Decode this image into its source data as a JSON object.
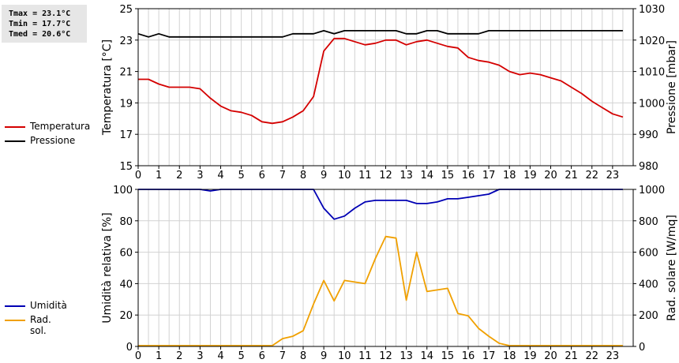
{
  "stats": {
    "tmax": "Tmax = 23.1°C",
    "tmin": "Tmin = 17.7°C",
    "tmed": "Tmed = 20.6°C"
  },
  "colors": {
    "temperature": "#d40000",
    "pressure": "#000000",
    "humidity": "#0000b4",
    "radiation": "#f0a000",
    "grid": "#d2d2d2"
  },
  "chart_data": [
    {
      "type": "line",
      "xlim": [
        0,
        24
      ],
      "x_ticks": [
        "0",
        "1",
        "2",
        "3",
        "4",
        "5",
        "6",
        "7",
        "8",
        "9",
        "10",
        "11",
        "12",
        "13",
        "14",
        "15",
        "16",
        "17",
        "18",
        "19",
        "20",
        "21",
        "22",
        "23"
      ],
      "ylabel": "Temperatura [°C]",
      "y2label": "Pressione [mbar]",
      "ylim": [
        15,
        25
      ],
      "y2lim": [
        980,
        1030
      ],
      "y_ticks": [
        15,
        17,
        19,
        21,
        23,
        25
      ],
      "y2_ticks": [
        980,
        990,
        1000,
        1010,
        1020,
        1030
      ],
      "grid": true,
      "legend_placement": "left",
      "series": [
        {
          "name": "Temperatura",
          "axis": "left",
          "color": "#d40000",
          "x": [
            0,
            0.5,
            1,
            1.5,
            2,
            2.5,
            3,
            3.5,
            4,
            4.5,
            5,
            5.5,
            6,
            6.5,
            7,
            7.5,
            8,
            8.5,
            9,
            9.5,
            10,
            10.5,
            11,
            11.5,
            12,
            12.5,
            13,
            13.5,
            14,
            14.5,
            15,
            15.5,
            16,
            16.5,
            17,
            17.5,
            18,
            18.5,
            19,
            19.5,
            20,
            20.5,
            21,
            21.5,
            22,
            22.5,
            23,
            23.5
          ],
          "values": [
            20.5,
            20.5,
            20.2,
            20.0,
            20.0,
            20.0,
            19.9,
            19.3,
            18.8,
            18.5,
            18.4,
            18.2,
            17.8,
            17.7,
            17.8,
            18.1,
            18.5,
            19.4,
            22.3,
            23.1,
            23.1,
            22.9,
            22.7,
            22.8,
            23.0,
            23.0,
            22.7,
            22.9,
            23.0,
            22.8,
            22.6,
            22.5,
            21.9,
            21.7,
            21.6,
            21.4,
            21.0,
            20.8,
            20.9,
            20.8,
            20.6,
            20.4,
            20.0,
            19.6,
            19.1,
            18.7,
            18.3,
            18.1
          ]
        },
        {
          "name": "Pressione",
          "axis": "right",
          "color": "#000000",
          "x": [
            0,
            0.5,
            1,
            1.5,
            2,
            2.5,
            3,
            3.5,
            4,
            4.5,
            5,
            5.5,
            6,
            6.5,
            7,
            7.5,
            8,
            8.5,
            9,
            9.5,
            10,
            10.5,
            11,
            11.5,
            12,
            12.5,
            13,
            13.5,
            14,
            14.5,
            15,
            15.5,
            16,
            16.5,
            17,
            17.5,
            18,
            18.5,
            19,
            19.5,
            20,
            20.5,
            21,
            21.5,
            22,
            22.5,
            23,
            23.5
          ],
          "values": [
            1022,
            1021,
            1022,
            1021,
            1021,
            1021,
            1021,
            1021,
            1021,
            1021,
            1021,
            1021,
            1021,
            1021,
            1021,
            1022,
            1022,
            1022,
            1023,
            1022,
            1023,
            1023,
            1023,
            1023,
            1023,
            1023,
            1022,
            1022,
            1023,
            1023,
            1022,
            1022,
            1022,
            1022,
            1023,
            1023,
            1023,
            1023,
            1023,
            1023,
            1023,
            1023,
            1023,
            1023,
            1023,
            1023,
            1023,
            1023
          ]
        }
      ]
    },
    {
      "type": "line",
      "xlim": [
        0,
        24
      ],
      "x_ticks": [
        "0",
        "1",
        "2",
        "3",
        "4",
        "5",
        "6",
        "7",
        "8",
        "9",
        "10",
        "11",
        "12",
        "13",
        "14",
        "15",
        "16",
        "17",
        "18",
        "19",
        "20",
        "21",
        "22",
        "23"
      ],
      "ylabel": "Umidità relativa [%]",
      "y2label": "Rad. solare [W/mq]",
      "ylim": [
        0,
        100
      ],
      "y2lim": [
        0,
        1000
      ],
      "y_ticks": [
        0,
        20,
        40,
        60,
        80,
        100
      ],
      "y2_ticks": [
        0,
        200,
        400,
        600,
        800,
        1000
      ],
      "grid": true,
      "legend_placement": "left",
      "series": [
        {
          "name": "Umidità",
          "axis": "left",
          "color": "#0000b4",
          "x": [
            0,
            0.5,
            1,
            1.5,
            2,
            2.5,
            3,
            3.5,
            4,
            4.5,
            5,
            5.5,
            6,
            6.5,
            7,
            7.5,
            8,
            8.5,
            9,
            9.5,
            10,
            10.5,
            11,
            11.5,
            12,
            12.5,
            13,
            13.5,
            14,
            14.5,
            15,
            15.5,
            16,
            16.5,
            17,
            17.5,
            18,
            18.5,
            19,
            19.5,
            20,
            20.5,
            21,
            21.5,
            22,
            22.5,
            23,
            23.5
          ],
          "values": [
            100,
            100,
            100,
            100,
            100,
            100,
            100,
            99,
            100,
            100,
            100,
            100,
            100,
            100,
            100,
            100,
            100,
            100,
            88,
            81,
            83,
            88,
            92,
            93,
            93,
            93,
            93,
            91,
            91,
            92,
            94,
            94,
            95,
            96,
            97,
            100,
            100,
            100,
            100,
            100,
            100,
            100,
            100,
            100,
            100,
            100,
            100,
            100
          ]
        },
        {
          "name": "Rad. sol.",
          "axis": "right",
          "color": "#f0a000",
          "x": [
            0,
            0.5,
            1,
            1.5,
            2,
            2.5,
            3,
            3.5,
            4,
            4.5,
            5,
            5.5,
            6,
            6.5,
            7,
            7.5,
            8,
            8.5,
            9,
            9.5,
            10,
            10.5,
            11,
            11.5,
            12,
            12.5,
            13,
            13.5,
            14,
            14.5,
            15,
            15.5,
            16,
            16.5,
            17,
            17.5,
            18,
            18.5,
            19,
            19.5,
            20,
            20.5,
            21,
            21.5,
            22,
            22.5,
            23,
            23.5
          ],
          "values": [
            5,
            5,
            5,
            5,
            5,
            5,
            5,
            5,
            5,
            5,
            5,
            5,
            5,
            5,
            50,
            65,
            100,
            270,
            420,
            290,
            420,
            410,
            400,
            560,
            700,
            690,
            295,
            600,
            350,
            360,
            370,
            210,
            195,
            115,
            65,
            20,
            5,
            5,
            5,
            5,
            5,
            5,
            5,
            5,
            5,
            5,
            5,
            5
          ]
        }
      ]
    }
  ]
}
